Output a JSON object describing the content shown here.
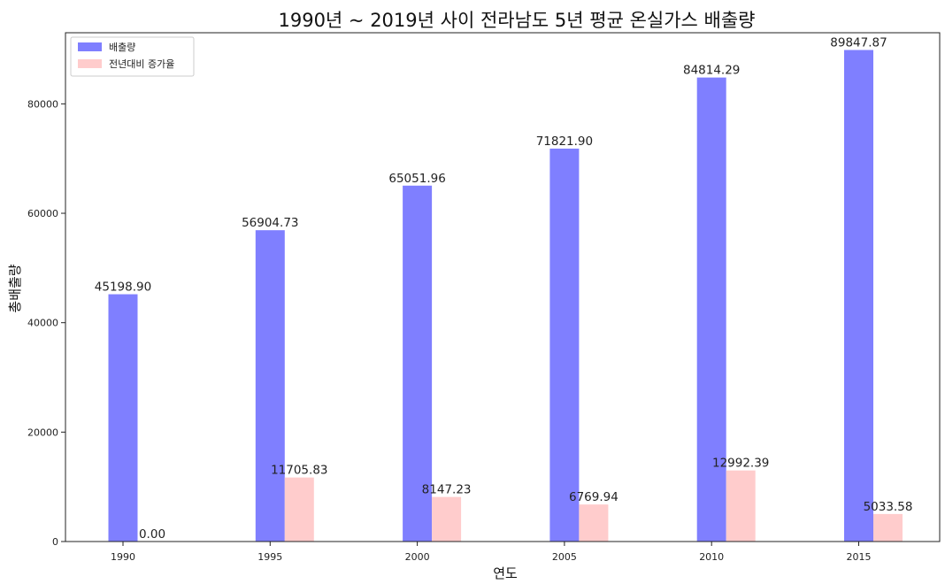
{
  "chart_data": {
    "type": "bar",
    "title": "1990년 ~ 2019년 사이 전라남도 5년 평균 온실가스 배출량",
    "xlabel": "연도",
    "ylabel": "총배출량",
    "categories": [
      "1990",
      "1995",
      "2000",
      "2005",
      "2010",
      "2015"
    ],
    "ylim": [
      0,
      93000
    ],
    "yticks": [
      0,
      20000,
      40000,
      60000,
      80000
    ],
    "grid": false,
    "legend_position": "top-left",
    "series": [
      {
        "name": "배출량",
        "color": "#7f7fff",
        "values": [
          45198.9,
          56904.73,
          65051.96,
          71821.9,
          84814.29,
          89847.87
        ],
        "labels": [
          "45198.90",
          "56904.73",
          "65051.96",
          "71821.90",
          "84814.29",
          "89847.87"
        ]
      },
      {
        "name": "전년대비 증가율",
        "color": "#ffcccc",
        "values": [
          0.0,
          11705.83,
          8147.23,
          6769.94,
          12992.39,
          5033.58
        ],
        "labels": [
          "0.00",
          "11705.83",
          "8147.23",
          "6769.94",
          "12992.39",
          "5033.58"
        ]
      }
    ]
  }
}
